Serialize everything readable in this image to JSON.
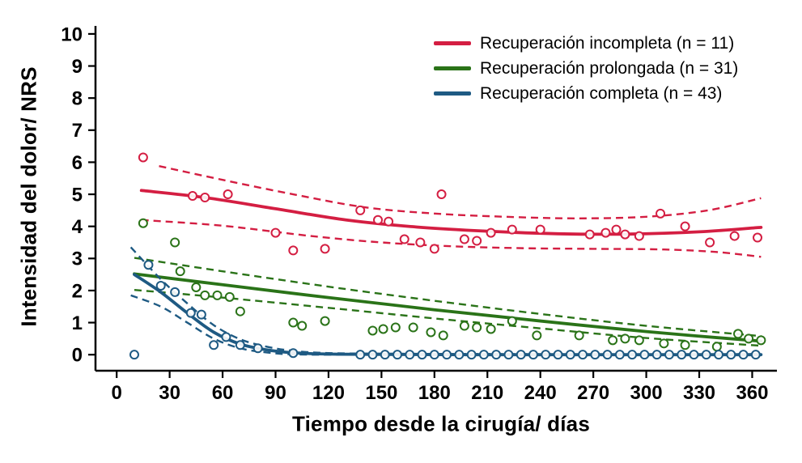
{
  "chart_data": {
    "type": "scatter",
    "title": "",
    "xlabel": "Tiempo desde la cirugía/ días",
    "ylabel": "Intensidad del dolor/ NRS",
    "xlim": [
      -12,
      374
    ],
    "ylim": [
      -0.5,
      10.25
    ],
    "xticks": [
      0,
      30,
      60,
      90,
      120,
      150,
      180,
      210,
      240,
      270,
      300,
      330,
      360
    ],
    "yticks": [
      0,
      1,
      2,
      3,
      4,
      5,
      6,
      7,
      8,
      9,
      10
    ],
    "grid": false,
    "legend_position": "top-right",
    "groups": [
      {
        "label": "Recuperación incompleta (n = 11)",
        "color": "#d41e42",
        "points": [
          [
            15,
            6.15
          ],
          [
            43,
            4.95
          ],
          [
            50,
            4.9
          ],
          [
            63,
            5.0
          ],
          [
            90,
            3.8
          ],
          [
            100,
            3.25
          ],
          [
            118,
            3.3
          ],
          [
            138,
            4.5
          ],
          [
            148,
            4.2
          ],
          [
            154,
            4.15
          ],
          [
            163,
            3.6
          ],
          [
            172,
            3.5
          ],
          [
            180,
            3.3
          ],
          [
            184,
            5.0
          ],
          [
            197,
            3.6
          ],
          [
            204,
            3.55
          ],
          [
            212,
            3.8
          ],
          [
            224,
            3.9
          ],
          [
            240,
            3.9
          ],
          [
            268,
            3.75
          ],
          [
            277,
            3.8
          ],
          [
            283,
            3.9
          ],
          [
            288,
            3.75
          ],
          [
            296,
            3.7
          ],
          [
            308,
            4.4
          ],
          [
            322,
            4.0
          ],
          [
            336,
            3.5
          ],
          [
            350,
            3.7
          ],
          [
            363,
            3.65
          ]
        ],
        "fit": [
          [
            14,
            5.12
          ],
          [
            50,
            4.9
          ],
          [
            90,
            4.55
          ],
          [
            130,
            4.2
          ],
          [
            170,
            3.98
          ],
          [
            210,
            3.85
          ],
          [
            250,
            3.77
          ],
          [
            290,
            3.76
          ],
          [
            330,
            3.83
          ],
          [
            365,
            3.97
          ]
        ],
        "ci_upper": [
          [
            24,
            5.88
          ],
          [
            60,
            5.45
          ],
          [
            100,
            5.0
          ],
          [
            140,
            4.6
          ],
          [
            180,
            4.4
          ],
          [
            220,
            4.3
          ],
          [
            260,
            4.25
          ],
          [
            300,
            4.3
          ],
          [
            335,
            4.5
          ],
          [
            365,
            4.88
          ]
        ],
        "ci_lower": [
          [
            14,
            4.2
          ],
          [
            60,
            4.02
          ],
          [
            110,
            3.7
          ],
          [
            150,
            3.5
          ],
          [
            190,
            3.38
          ],
          [
            230,
            3.32
          ],
          [
            270,
            3.3
          ],
          [
            310,
            3.28
          ],
          [
            340,
            3.2
          ],
          [
            365,
            3.05
          ]
        ]
      },
      {
        "label": "Recuperación prolongada (n = 31)",
        "color": "#2a7318",
        "points": [
          [
            15,
            4.1
          ],
          [
            33,
            3.5
          ],
          [
            36,
            2.6
          ],
          [
            45,
            2.1
          ],
          [
            50,
            1.85
          ],
          [
            57,
            1.85
          ],
          [
            64,
            1.8
          ],
          [
            70,
            1.35
          ],
          [
            100,
            1.0
          ],
          [
            105,
            0.9
          ],
          [
            118,
            1.05
          ],
          [
            145,
            0.75
          ],
          [
            151,
            0.8
          ],
          [
            158,
            0.85
          ],
          [
            168,
            0.85
          ],
          [
            178,
            0.7
          ],
          [
            185,
            0.6
          ],
          [
            197,
            0.9
          ],
          [
            204,
            0.85
          ],
          [
            212,
            0.8
          ],
          [
            224,
            1.05
          ],
          [
            238,
            0.6
          ],
          [
            262,
            0.6
          ],
          [
            281,
            0.45
          ],
          [
            288,
            0.5
          ],
          [
            296,
            0.45
          ],
          [
            310,
            0.35
          ],
          [
            322,
            0.3
          ],
          [
            340,
            0.25
          ],
          [
            352,
            0.65
          ],
          [
            358,
            0.5
          ],
          [
            365,
            0.45
          ]
        ],
        "fit": [
          [
            10,
            2.52
          ],
          [
            60,
            2.18
          ],
          [
            120,
            1.78
          ],
          [
            180,
            1.4
          ],
          [
            240,
            1.05
          ],
          [
            300,
            0.72
          ],
          [
            365,
            0.42
          ]
        ],
        "ci_upper": [
          [
            10,
            3.02
          ],
          [
            60,
            2.6
          ],
          [
            120,
            2.12
          ],
          [
            180,
            1.68
          ],
          [
            240,
            1.27
          ],
          [
            300,
            0.9
          ],
          [
            365,
            0.58
          ]
        ],
        "ci_lower": [
          [
            10,
            2.02
          ],
          [
            60,
            1.78
          ],
          [
            120,
            1.46
          ],
          [
            180,
            1.13
          ],
          [
            240,
            0.82
          ],
          [
            300,
            0.52
          ],
          [
            365,
            0.28
          ]
        ]
      },
      {
        "label": "Recuperación completa (n = 43)",
        "color": "#1e5a83",
        "points": [
          [
            10,
            0
          ],
          [
            18,
            2.8
          ],
          [
            25,
            2.15
          ],
          [
            33,
            1.95
          ],
          [
            42,
            1.3
          ],
          [
            48,
            1.25
          ],
          [
            55,
            0.3
          ],
          [
            62,
            0.55
          ],
          [
            70,
            0.3
          ],
          [
            80,
            0.2
          ],
          [
            100,
            0.05
          ],
          [
            138,
            0
          ],
          [
            145,
            0
          ],
          [
            152,
            0
          ],
          [
            159,
            0
          ],
          [
            166,
            0
          ],
          [
            173,
            0
          ],
          [
            180,
            0
          ],
          [
            187,
            0
          ],
          [
            194,
            0
          ],
          [
            201,
            0
          ],
          [
            208,
            0
          ],
          [
            215,
            0
          ],
          [
            222,
            0
          ],
          [
            229,
            0
          ],
          [
            236,
            0
          ],
          [
            243,
            0
          ],
          [
            250,
            0
          ],
          [
            257,
            0
          ],
          [
            264,
            0
          ],
          [
            271,
            0
          ],
          [
            278,
            0
          ],
          [
            285,
            0
          ],
          [
            292,
            0
          ],
          [
            299,
            0
          ],
          [
            306,
            0
          ],
          [
            313,
            0
          ],
          [
            320,
            0
          ],
          [
            327,
            0
          ],
          [
            334,
            0
          ],
          [
            341,
            0
          ],
          [
            348,
            0
          ],
          [
            355,
            0
          ],
          [
            362,
            0
          ]
        ],
        "fit": [
          [
            10,
            2.5
          ],
          [
            25,
            1.95
          ],
          [
            40,
            1.3
          ],
          [
            55,
            0.7
          ],
          [
            70,
            0.33
          ],
          [
            85,
            0.15
          ],
          [
            100,
            0.06
          ],
          [
            120,
            0.02
          ],
          [
            150,
            0.01
          ],
          [
            200,
            0
          ],
          [
            260,
            0
          ],
          [
            320,
            0
          ],
          [
            365,
            0
          ]
        ],
        "ci_upper": [
          [
            8,
            3.35
          ],
          [
            25,
            2.35
          ],
          [
            40,
            1.6
          ],
          [
            55,
            0.92
          ],
          [
            70,
            0.48
          ],
          [
            85,
            0.25
          ],
          [
            100,
            0.12
          ],
          [
            120,
            0.05
          ],
          [
            160,
            0.03
          ],
          [
            220,
            0.02
          ],
          [
            300,
            0.02
          ],
          [
            365,
            0.02
          ]
        ],
        "ci_lower": [
          [
            8,
            1.85
          ],
          [
            25,
            1.5
          ],
          [
            40,
            1.0
          ],
          [
            55,
            0.5
          ],
          [
            70,
            0.2
          ],
          [
            85,
            0.07
          ],
          [
            100,
            0.01
          ],
          [
            130,
            0
          ],
          [
            200,
            0
          ],
          [
            300,
            0
          ],
          [
            365,
            0
          ]
        ]
      }
    ]
  }
}
